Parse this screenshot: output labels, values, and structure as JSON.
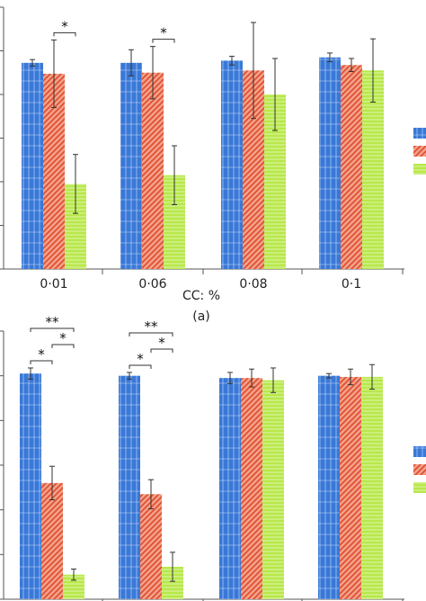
{
  "colors": {
    "series1": "#3a78d6",
    "series2": "#e8644a",
    "series3": "#b8e84a"
  },
  "chart_data": [
    {
      "type": "bar",
      "panel_label": "(a)",
      "xlabel": "CC: %",
      "categories": [
        "0·01",
        "0·06",
        "0·08",
        "0·1"
      ],
      "series": [
        {
          "values": [
            94.5,
            94.5,
            95.5,
            97.0
          ],
          "errors": [
            1.5,
            6.0,
            2.0,
            2.0
          ]
        },
        {
          "values": [
            89.5,
            90.0,
            91.0,
            93.5
          ],
          "errors": [
            15.5,
            12.0,
            22.0,
            3.0
          ]
        },
        {
          "values": [
            39.0,
            43.0,
            80.0,
            91.0
          ],
          "errors": [
            13.5,
            13.5,
            16.5,
            14.5
          ]
        }
      ],
      "ylim": [
        0,
        120
      ],
      "grid": false,
      "legend": "right",
      "annotations": [
        {
          "text": "*",
          "category": 0,
          "between": [
            1,
            2
          ]
        },
        {
          "text": "*",
          "category": 1,
          "between": [
            1,
            2
          ]
        }
      ]
    },
    {
      "type": "bar",
      "categories": [
        "",
        "",
        "",
        ""
      ],
      "series": [
        {
          "values": [
            101.0,
            100.0,
            99.0,
            100.0
          ],
          "errors": [
            2.5,
            1.5,
            2.5,
            1.0
          ]
        },
        {
          "values": [
            52.0,
            47.0,
            99.0,
            99.5
          ],
          "errors": [
            7.5,
            6.5,
            4.0,
            3.5
          ]
        },
        {
          "values": [
            11.0,
            14.5,
            98.0,
            99.5
          ],
          "errors": [
            2.5,
            6.5,
            5.5,
            5.5
          ]
        }
      ],
      "ylim": [
        0,
        120
      ],
      "grid": false,
      "legend": "right",
      "annotations": [
        {
          "text": "**",
          "category": 0,
          "between": [
            0,
            2
          ]
        },
        {
          "text": "*",
          "category": 0,
          "between": [
            0,
            1
          ]
        },
        {
          "text": "*",
          "category": 0,
          "between": [
            1,
            2
          ]
        },
        {
          "text": "**",
          "category": 1,
          "between": [
            0,
            2
          ]
        },
        {
          "text": "*",
          "category": 1,
          "between": [
            0,
            1
          ]
        },
        {
          "text": "*",
          "category": 1,
          "between": [
            1,
            2
          ]
        }
      ]
    }
  ]
}
